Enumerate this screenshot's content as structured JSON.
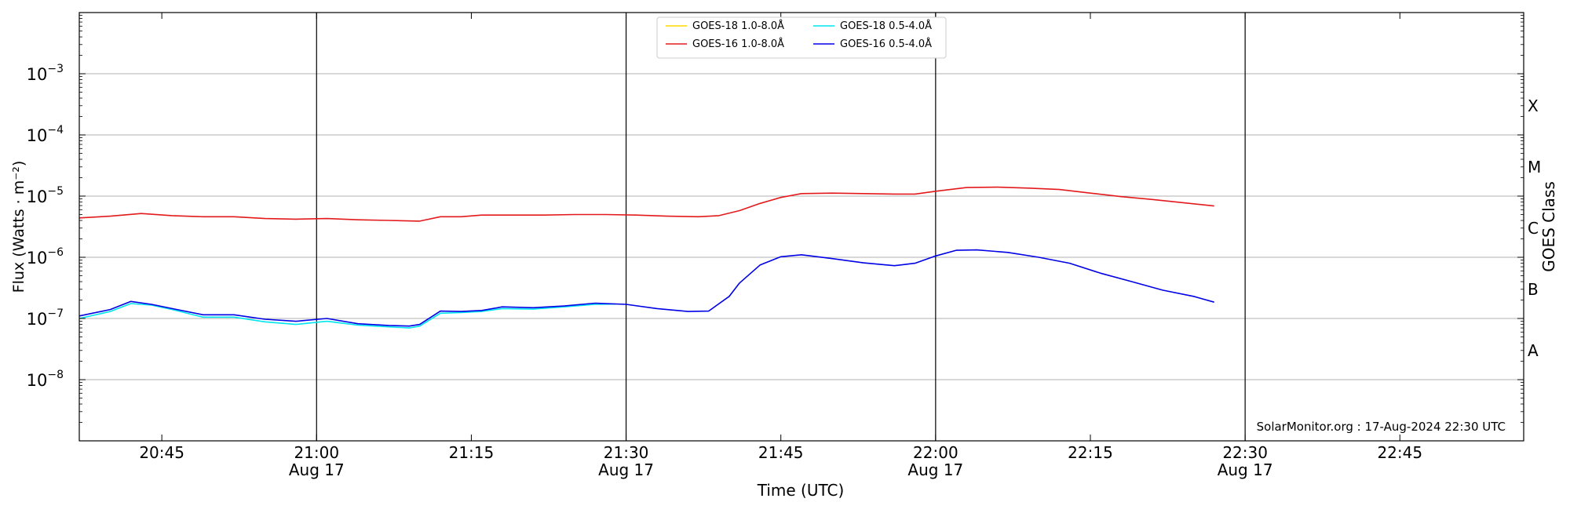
{
  "chart_data": {
    "type": "line",
    "ylabel": "Flux (Watts · m⁻²)",
    "xlabel": "Time (UTC)",
    "right_label": "GOES Class",
    "watermark": "SolarMonitor.org : 17-Aug-2024 22:30 UTC",
    "y_scale": "log",
    "ylim": [
      "1e-9",
      "1e-2"
    ],
    "xlim": [
      "20:37",
      "22:57"
    ],
    "y_ticks": [
      {
        "value": "1e-8",
        "base": "10",
        "exp": "−8"
      },
      {
        "value": "1e-7",
        "base": "10",
        "exp": "−7"
      },
      {
        "value": "1e-6",
        "base": "10",
        "exp": "−6"
      },
      {
        "value": "1e-5",
        "base": "10",
        "exp": "−5"
      },
      {
        "value": "1e-4",
        "base": "10",
        "exp": "−4"
      },
      {
        "value": "1e-3",
        "base": "10",
        "exp": "−3"
      }
    ],
    "x_ticks": [
      {
        "time": "20:45",
        "label": "20:45",
        "sub": ""
      },
      {
        "time": "21:00",
        "label": "21:00",
        "sub": "Aug 17"
      },
      {
        "time": "21:15",
        "label": "21:15",
        "sub": ""
      },
      {
        "time": "21:30",
        "label": "21:30",
        "sub": "Aug 17"
      },
      {
        "time": "21:45",
        "label": "21:45",
        "sub": ""
      },
      {
        "time": "22:00",
        "label": "22:00",
        "sub": "Aug 17"
      },
      {
        "time": "22:15",
        "label": "22:15",
        "sub": ""
      },
      {
        "time": "22:30",
        "label": "22:30",
        "sub": "Aug 17"
      },
      {
        "time": "22:45",
        "label": "22:45",
        "sub": ""
      }
    ],
    "vertical_lines": [
      "21:00",
      "21:30",
      "22:00",
      "22:30"
    ],
    "goes_classes": [
      {
        "label": "X",
        "value": "3e-4"
      },
      {
        "label": "M",
        "value": "3e-5"
      },
      {
        "label": "C",
        "value": "3e-6"
      },
      {
        "label": "B",
        "value": "3e-7"
      },
      {
        "label": "A",
        "value": "3e-8"
      }
    ],
    "grid": true,
    "legend_position": "top-center",
    "series": [
      {
        "name": "GOES-18 1.0-8.0Å",
        "color": "#ffd700",
        "x": [],
        "y": []
      },
      {
        "name": "GOES-16 1.0-8.0Å",
        "color": "#e31a1c",
        "x": [
          "20:37",
          "20:40",
          "20:43",
          "20:46",
          "20:49",
          "20:52",
          "20:55",
          "20:58",
          "21:01",
          "21:04",
          "21:07",
          "21:10",
          "21:12",
          "21:14",
          "21:16",
          "21:19",
          "21:22",
          "21:25",
          "21:28",
          "21:31",
          "21:34",
          "21:37",
          "21:39",
          "21:41",
          "21:43",
          "21:45",
          "21:47",
          "21:50",
          "21:53",
          "21:56",
          "21:58",
          "22:00",
          "22:03",
          "22:06",
          "22:09",
          "22:12",
          "22:15",
          "22:18",
          "22:21",
          "22:24",
          "22:27"
        ],
        "y": [
          "4.4e-6",
          "4.7e-6",
          "5.2e-6",
          "4.8e-6",
          "4.6e-6",
          "4.6e-6",
          "4.3e-6",
          "4.2e-6",
          "4.3e-6",
          "4.1e-6",
          "4.0e-6",
          "3.9e-6",
          "4.6e-6",
          "4.6e-6",
          "4.9e-6",
          "4.9e-6",
          "4.9e-6",
          "5.0e-6",
          "5.0e-6",
          "4.9e-6",
          "4.7e-6",
          "4.6e-6",
          "4.8e-6",
          "5.8e-6",
          "7.6e-6",
          "9.5e-6",
          "1.1e-5",
          "1.12e-5",
          "1.1e-5",
          "1.08e-5",
          "1.08e-5",
          "1.2e-5",
          "1.38e-5",
          "1.4e-5",
          "1.35e-5",
          "1.28e-5",
          "1.12e-5",
          "9.8e-6",
          "8.8e-6",
          "7.8e-6",
          "6.9e-6"
        ]
      },
      {
        "name": "GOES-18 0.5-4.0Å",
        "color": "#00e5ee",
        "x": [
          "20:37",
          "20:40",
          "20:42",
          "20:44",
          "20:46",
          "20:49",
          "20:52",
          "20:55",
          "20:58",
          "21:01",
          "21:04",
          "21:07",
          "21:09",
          "21:10",
          "21:12",
          "21:14",
          "21:16",
          "21:18",
          "21:21",
          "21:24",
          "21:27",
          "21:29"
        ],
        "y": [
          "1.0e-7",
          "1.3e-7",
          "1.75e-7",
          "1.65e-7",
          "1.4e-7",
          "1.05e-7",
          "1.05e-7",
          "8.8e-8",
          "8.0e-8",
          "9.0e-8",
          "7.8e-8",
          "7.3e-8",
          "7.0e-8",
          "7.5e-8",
          "1.22e-7",
          "1.25e-7",
          "1.3e-7",
          "1.45e-7",
          "1.42e-7",
          "1.55e-7",
          "1.7e-7",
          "1.72e-7"
        ]
      },
      {
        "name": "GOES-16 0.5-4.0Å",
        "color": "#0000e6",
        "x": [
          "20:37",
          "20:40",
          "20:42",
          "20:44",
          "20:46",
          "20:49",
          "20:52",
          "20:55",
          "20:58",
          "21:01",
          "21:04",
          "21:07",
          "21:09",
          "21:10",
          "21:12",
          "21:14",
          "21:16",
          "21:18",
          "21:21",
          "21:24",
          "21:27",
          "21:30",
          "21:33",
          "21:36",
          "21:38",
          "21:40",
          "21:41",
          "21:43",
          "21:45",
          "21:47",
          "21:50",
          "21:53",
          "21:56",
          "21:58",
          "22:00",
          "22:02",
          "22:04",
          "22:07",
          "22:10",
          "22:13",
          "22:16",
          "22:19",
          "22:22",
          "22:25",
          "22:27"
        ],
        "y": [
          "1.1e-7",
          "1.4e-7",
          "1.9e-7",
          "1.7e-7",
          "1.45e-7",
          "1.15e-7",
          "1.15e-7",
          "9.7e-8",
          "9.0e-8",
          "1.0e-7",
          "8.2e-8",
          "7.7e-8",
          "7.5e-8",
          "8.0e-8",
          "1.32e-7",
          "1.3e-7",
          "1.35e-7",
          "1.55e-7",
          "1.5e-7",
          "1.6e-7",
          "1.78e-7",
          "1.7e-7",
          "1.45e-7",
          "1.3e-7",
          "1.32e-7",
          "2.3e-7",
          "3.8e-7",
          "7.5e-7",
          "1.02e-6",
          "1.1e-6",
          "9.5e-7",
          "8.1e-7",
          "7.3e-7",
          "8.0e-7",
          "1.05e-6",
          "1.3e-6",
          "1.32e-6",
          "1.2e-6",
          "1.0e-6",
          "8.0e-7",
          "5.5e-7",
          "4.0e-7",
          "2.9e-7",
          "2.3e-7",
          "1.85e-7"
        ]
      }
    ]
  }
}
